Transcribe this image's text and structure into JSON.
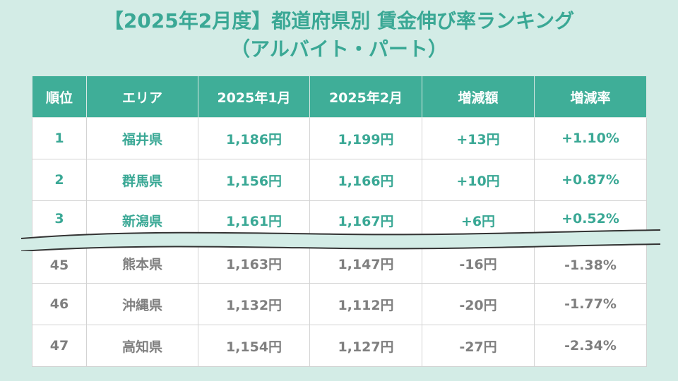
{
  "title": {
    "line1": "【2025年2月度】都道府県別 賃金伸び率ランキング",
    "line2": "（アルバイト・パート）"
  },
  "colors": {
    "background": "#d3ece6",
    "accent": "#3fae98",
    "top_text": "#3aa895",
    "bottom_text": "#7f7f7f"
  },
  "table": {
    "headers": [
      "順位",
      "エリア",
      "2025年1月",
      "2025年2月",
      "増減額",
      "増減率"
    ],
    "top_rows": [
      [
        "1",
        "福井県",
        "1,186円",
        "1,199円",
        "+13円",
        "+1.10%"
      ],
      [
        "2",
        "群馬県",
        "1,156円",
        "1,166円",
        "+10円",
        "+0.87%"
      ],
      [
        "3",
        "新潟県",
        "1,161円",
        "1,167円",
        "+6円",
        "+0.52%"
      ]
    ],
    "bottom_rows": [
      [
        "45",
        "熊本県",
        "1,163円",
        "1,147円",
        "-16円",
        "-1.38%"
      ],
      [
        "46",
        "沖縄県",
        "1,132円",
        "1,112円",
        "-20円",
        "-1.77%"
      ],
      [
        "47",
        "高知県",
        "1,154円",
        "1,127円",
        "-27円",
        "-2.34%"
      ]
    ]
  }
}
